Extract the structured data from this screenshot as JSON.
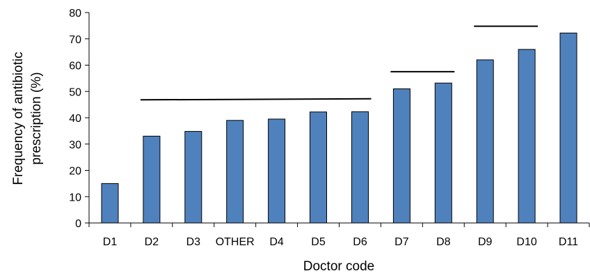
{
  "chart_data": {
    "type": "bar",
    "categories": [
      "D1",
      "D2",
      "D3",
      "OTHER",
      "D4",
      "D5",
      "D6",
      "D7",
      "D8",
      "D9",
      "D10",
      "D11"
    ],
    "values": [
      15,
      33,
      34.8,
      39,
      39.5,
      42.2,
      42.3,
      51,
      53.2,
      62,
      66,
      72.2
    ],
    "xlabel": "Doctor code",
    "ylabel_lines": [
      "Frequency of antibiotic",
      "prescription (%)"
    ],
    "ylim": [
      0,
      80
    ],
    "yticks": [
      0,
      10,
      20,
      30,
      40,
      50,
      60,
      70,
      80
    ],
    "grid": false,
    "bar_color": "#4F81BD",
    "bar_edge_color": "#000000",
    "group_lines": [
      {
        "from": "D2",
        "to": "D6",
        "y_start": 46.8,
        "y_end": 47.2
      },
      {
        "from": "D7",
        "to": "D8",
        "y_start": 57.5,
        "y_end": 57.5
      },
      {
        "from": "D9",
        "to": "D10",
        "y_start": 74.8,
        "y_end": 74.8
      }
    ]
  }
}
